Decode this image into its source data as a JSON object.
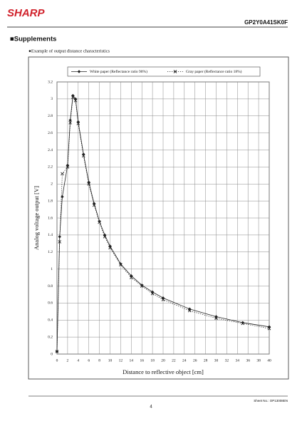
{
  "header": {
    "logo": "SHARP",
    "model": "GP2Y0A41SK0F"
  },
  "section": "■Supplements",
  "caption": "●Example of output distance characteristics",
  "footer": {
    "sheet": "Sheet No.: OP13008EN",
    "page": "4"
  },
  "chart_data": {
    "type": "line",
    "x_label": "Distance to reflective object  [cm]",
    "y_label": "Analog voltage output [V]",
    "x": [
      0,
      0.5,
      1,
      2,
      2.5,
      3,
      3.5,
      4,
      5,
      6,
      7,
      8,
      9,
      10,
      12,
      14,
      16,
      18,
      20,
      25,
      30,
      35,
      40
    ],
    "series": [
      {
        "name": "White paper (Reflectance ratio 90%)",
        "color": "#222222",
        "style": "solid",
        "marker": "diamond",
        "values": [
          0.03,
          1.38,
          1.85,
          2.22,
          2.75,
          3.04,
          3.0,
          2.73,
          2.35,
          2.02,
          1.77,
          1.56,
          1.4,
          1.27,
          1.06,
          0.92,
          0.81,
          0.73,
          0.66,
          0.53,
          0.44,
          0.37,
          0.32
        ]
      },
      {
        "name": "Gray paper (Reflectance ratio 18%)",
        "color": "#222222",
        "style": "dotted",
        "marker": "x",
        "values": [
          0.03,
          1.32,
          2.12,
          2.2,
          2.72,
          3.02,
          2.98,
          2.71,
          2.33,
          2.0,
          1.75,
          1.55,
          1.38,
          1.25,
          1.05,
          0.9,
          0.8,
          0.71,
          0.64,
          0.51,
          0.42,
          0.36,
          0.3
        ]
      }
    ],
    "xlim": [
      0,
      40
    ],
    "xticks": [
      0,
      2,
      4,
      6,
      8,
      10,
      12,
      14,
      16,
      18,
      20,
      22,
      24,
      26,
      28,
      30,
      32,
      34,
      36,
      38,
      40
    ],
    "ylim": [
      0,
      3.2
    ],
    "yticks": [
      0,
      0.2,
      0.4,
      0.6,
      0.8,
      1,
      1.2,
      1.4,
      1.6,
      1.8,
      2,
      2.2,
      2.4,
      2.6,
      2.8,
      3,
      3.2
    ],
    "grid": true
  }
}
